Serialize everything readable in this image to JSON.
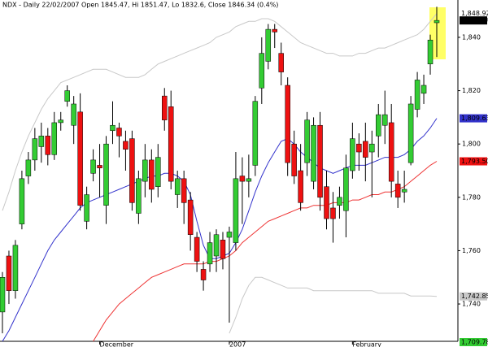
{
  "chart_data": {
    "type": "candlestick",
    "title": "NDX - Daily 22/02/2007 Open 1845.47, Hi 1851.47, Lo 1832.6, Close 1846.34 (0.4%)",
    "categories": [
      null,
      null,
      null,
      null,
      null,
      null,
      null,
      null,
      null,
      null,
      null,
      null,
      null,
      null,
      null,
      "December",
      null,
      null,
      null,
      null,
      null,
      null,
      null,
      null,
      null,
      null,
      null,
      null,
      null,
      null,
      null,
      null,
      null,
      null,
      null,
      "2007",
      null,
      null,
      null,
      null,
      null,
      null,
      null,
      null,
      null,
      null,
      null,
      null,
      null,
      null,
      null,
      null,
      null,
      null,
      "February",
      null,
      null,
      null,
      null,
      null,
      null,
      null,
      null,
      null,
      null,
      null,
      null,
      null
    ],
    "open": [
      1737,
      1758,
      1745,
      1770,
      1788,
      1794,
      1799,
      1803,
      1796,
      1808,
      1816,
      1807,
      1812,
      1771,
      1789,
      1792,
      1777,
      1805,
      1806,
      1801,
      1802,
      1774,
      1786,
      1794,
      1784,
      1818,
      1814,
      1781,
      1787,
      1779,
      1765,
      1753,
      1755,
      1758,
      1764,
      1765,
      1763,
      1788,
      1786,
      1792,
      1821,
      1831,
      1843,
      1834,
      1822,
      1800,
      1790,
      1793,
      1786,
      1807,
      1784,
      1776,
      1777,
      1775,
      1790,
      1800,
      1801,
      1797,
      1803,
      1807,
      1808,
      1785,
      1782,
      1793,
      1813,
      1819,
      1830,
      1845.47
    ],
    "high": [
      1752,
      1760,
      1764,
      1790,
      1797,
      1806,
      1808,
      1806,
      1812,
      1812,
      1822,
      1818,
      1819,
      1784,
      1798,
      1800,
      1803,
      1816,
      1808,
      1805,
      1805,
      1790,
      1800,
      1798,
      1800,
      1821,
      1820,
      1790,
      1790,
      1782,
      1767,
      1756,
      1767,
      1768,
      1767,
      1769,
      1797,
      1795,
      1796,
      1818,
      1840,
      1845,
      1845,
      1838,
      1825,
      1805,
      1800,
      1812,
      1810,
      1812,
      1790,
      1782,
      1784,
      1796,
      1808,
      1804,
      1808,
      1805,
      1815,
      1820,
      1815,
      1790,
      1790,
      1818,
      1827,
      1826,
      1841,
      1851.47
    ],
    "low": [
      1729,
      1740,
      1742,
      1768,
      1785,
      1790,
      1793,
      1792,
      1794,
      1805,
      1814,
      1800,
      1775,
      1768,
      1786,
      1780,
      1770,
      1800,
      1795,
      1790,
      1775,
      1770,
      1780,
      1778,
      1780,
      1805,
      1783,
      1776,
      1770,
      1760,
      1752,
      1745,
      1752,
      1752,
      1753,
      1733,
      1760,
      1770,
      1780,
      1788,
      1815,
      1828,
      1836,
      1822,
      1788,
      1785,
      1775,
      1788,
      1783,
      1775,
      1768,
      1763,
      1772,
      1765,
      1787,
      1790,
      1786,
      1780,
      1795,
      1800,
      1780,
      1776,
      1778,
      1792,
      1810,
      1815,
      1826,
      1832.6
    ],
    "close": [
      1750,
      1745,
      1762,
      1787,
      1794,
      1802,
      1803,
      1796,
      1808,
      1809,
      1820,
      1815,
      1777,
      1781,
      1794,
      1791,
      1800,
      1807,
      1803,
      1798,
      1778,
      1787,
      1794,
      1783,
      1795,
      1809,
      1786,
      1787,
      1778,
      1766,
      1756,
      1749,
      1763,
      1766,
      1757,
      1767,
      1787,
      1786,
      1787,
      1816,
      1834,
      1843,
      1842,
      1827,
      1793,
      1788,
      1778,
      1809,
      1807,
      1780,
      1772,
      1772,
      1780,
      1791,
      1802,
      1797,
      1795,
      1800,
      1811,
      1811,
      1786,
      1780,
      1783,
      1815,
      1824,
      1822,
      1839,
      1846.34
    ],
    "up_color": "#33cc33",
    "down_color": "#ee1111",
    "lines": [
      {
        "color": "#3333cc",
        "values": [
          1726,
          1730,
          1735,
          1740,
          1745,
          1750,
          1755,
          1760,
          1764,
          1767,
          1770,
          1773,
          1776,
          1778,
          1779,
          1780,
          1781,
          1782,
          1783,
          1784,
          1785,
          1786,
          1787,
          1788,
          1788,
          1789,
          1789,
          1788,
          1786,
          1781,
          1771,
          1762,
          1757,
          1757,
          1758,
          1759,
          1763,
          1768,
          1775,
          1782,
          1788,
          1793,
          1797,
          1801,
          1802,
          1800,
          1797,
          1795,
          1793,
          1791,
          1790,
          1789,
          1790,
          1791,
          1792,
          1792,
          1792,
          1793,
          1794,
          1795,
          1795,
          1795,
          1796,
          1798,
          1801,
          1803,
          1806,
          1809.63
        ]
      },
      {
        "color": "#ee3333",
        "values": [
          null,
          null,
          null,
          null,
          null,
          null,
          null,
          null,
          null,
          null,
          null,
          null,
          null,
          null,
          1726,
          1730,
          1734,
          1737,
          1740,
          1742,
          1744,
          1746,
          1748,
          1750,
          1751,
          1752,
          1753,
          1754,
          1755,
          1755,
          1755,
          1755,
          1756,
          1756,
          1757,
          1758,
          1760,
          1763,
          1765,
          1767,
          1769,
          1771,
          1772,
          1773,
          1774,
          1775,
          1776,
          1776,
          1777,
          1777,
          1777,
          1778,
          1778,
          1778,
          1779,
          1779,
          1780,
          1781,
          1781,
          1782,
          1782,
          1783,
          1784,
          1786,
          1788,
          1790,
          1792,
          1793.5
        ]
      },
      {
        "color": "#c8c8c8",
        "values": [
          1775,
          1782,
          1790,
          1797,
          1803,
          1808,
          1813,
          1817,
          1820,
          1823,
          1824,
          1825,
          1826,
          1827,
          1828,
          1828,
          1828,
          1827,
          1826,
          1825,
          1825,
          1825,
          1826,
          1828,
          1830,
          1831,
          1832,
          1833,
          1834,
          1835,
          1836,
          1837,
          1838,
          1840,
          1841,
          1842,
          1844,
          1845,
          1846,
          1846,
          1847,
          1847,
          1846,
          1844,
          1842,
          1840,
          1838,
          1837,
          1836,
          1835,
          1834,
          1834,
          1833,
          1833,
          1833,
          1834,
          1834,
          1835,
          1836,
          1836,
          1837,
          1838,
          1839,
          1840,
          1841,
          1843,
          1846,
          1848.92
        ]
      },
      {
        "color": "#c8c8c8",
        "values": [
          null,
          null,
          null,
          null,
          null,
          null,
          null,
          null,
          null,
          null,
          null,
          null,
          null,
          null,
          null,
          null,
          null,
          null,
          null,
          null,
          null,
          null,
          null,
          null,
          null,
          null,
          null,
          null,
          null,
          null,
          null,
          null,
          null,
          null,
          null,
          1729,
          1735,
          1742,
          1747,
          1750,
          1750,
          1749,
          1748,
          1747,
          1746,
          1746,
          1746,
          1746,
          1745,
          1745,
          1745,
          1745,
          1745,
          1745,
          1745,
          1745,
          1745,
          1745,
          1744,
          1744,
          1744,
          1744,
          1744,
          1743,
          1743,
          1743,
          1743,
          1742.85
        ]
      }
    ],
    "price_labels": [
      {
        "value": 1848.92,
        "label": "1,848.92",
        "color": "#ffffff",
        "text_color": "#000000"
      },
      {
        "value": 1846.34,
        "label": "1,846.34",
        "color": "#000000",
        "text_color": "#ffffff"
      },
      {
        "value": 1809.63,
        "label": "1,809.63",
        "color": "#3333cc",
        "text_color": "#ffffff"
      },
      {
        "value": 1793.5,
        "label": "1,793.50",
        "color": "#ee1111",
        "text_color": "#ffffff"
      },
      {
        "value": 1742.85,
        "label": "1,742.85",
        "color": "#c8c8c8",
        "text_color": "#000000"
      },
      {
        "value": 1709.78,
        "label": "1,709.78",
        "color": "#33cc33",
        "text_color": "#ffffff"
      }
    ],
    "ylim": [
      1726,
      1854
    ],
    "yticks": [
      {
        "value": 1740,
        "label": "1,740"
      },
      {
        "value": 1760,
        "label": "1,760"
      },
      {
        "value": 1780,
        "label": "1,780"
      },
      {
        "value": 1800,
        "label": "1,800"
      },
      {
        "value": 1820,
        "label": "1,820"
      },
      {
        "value": 1840,
        "label": "1,840"
      }
    ],
    "grid": false
  }
}
